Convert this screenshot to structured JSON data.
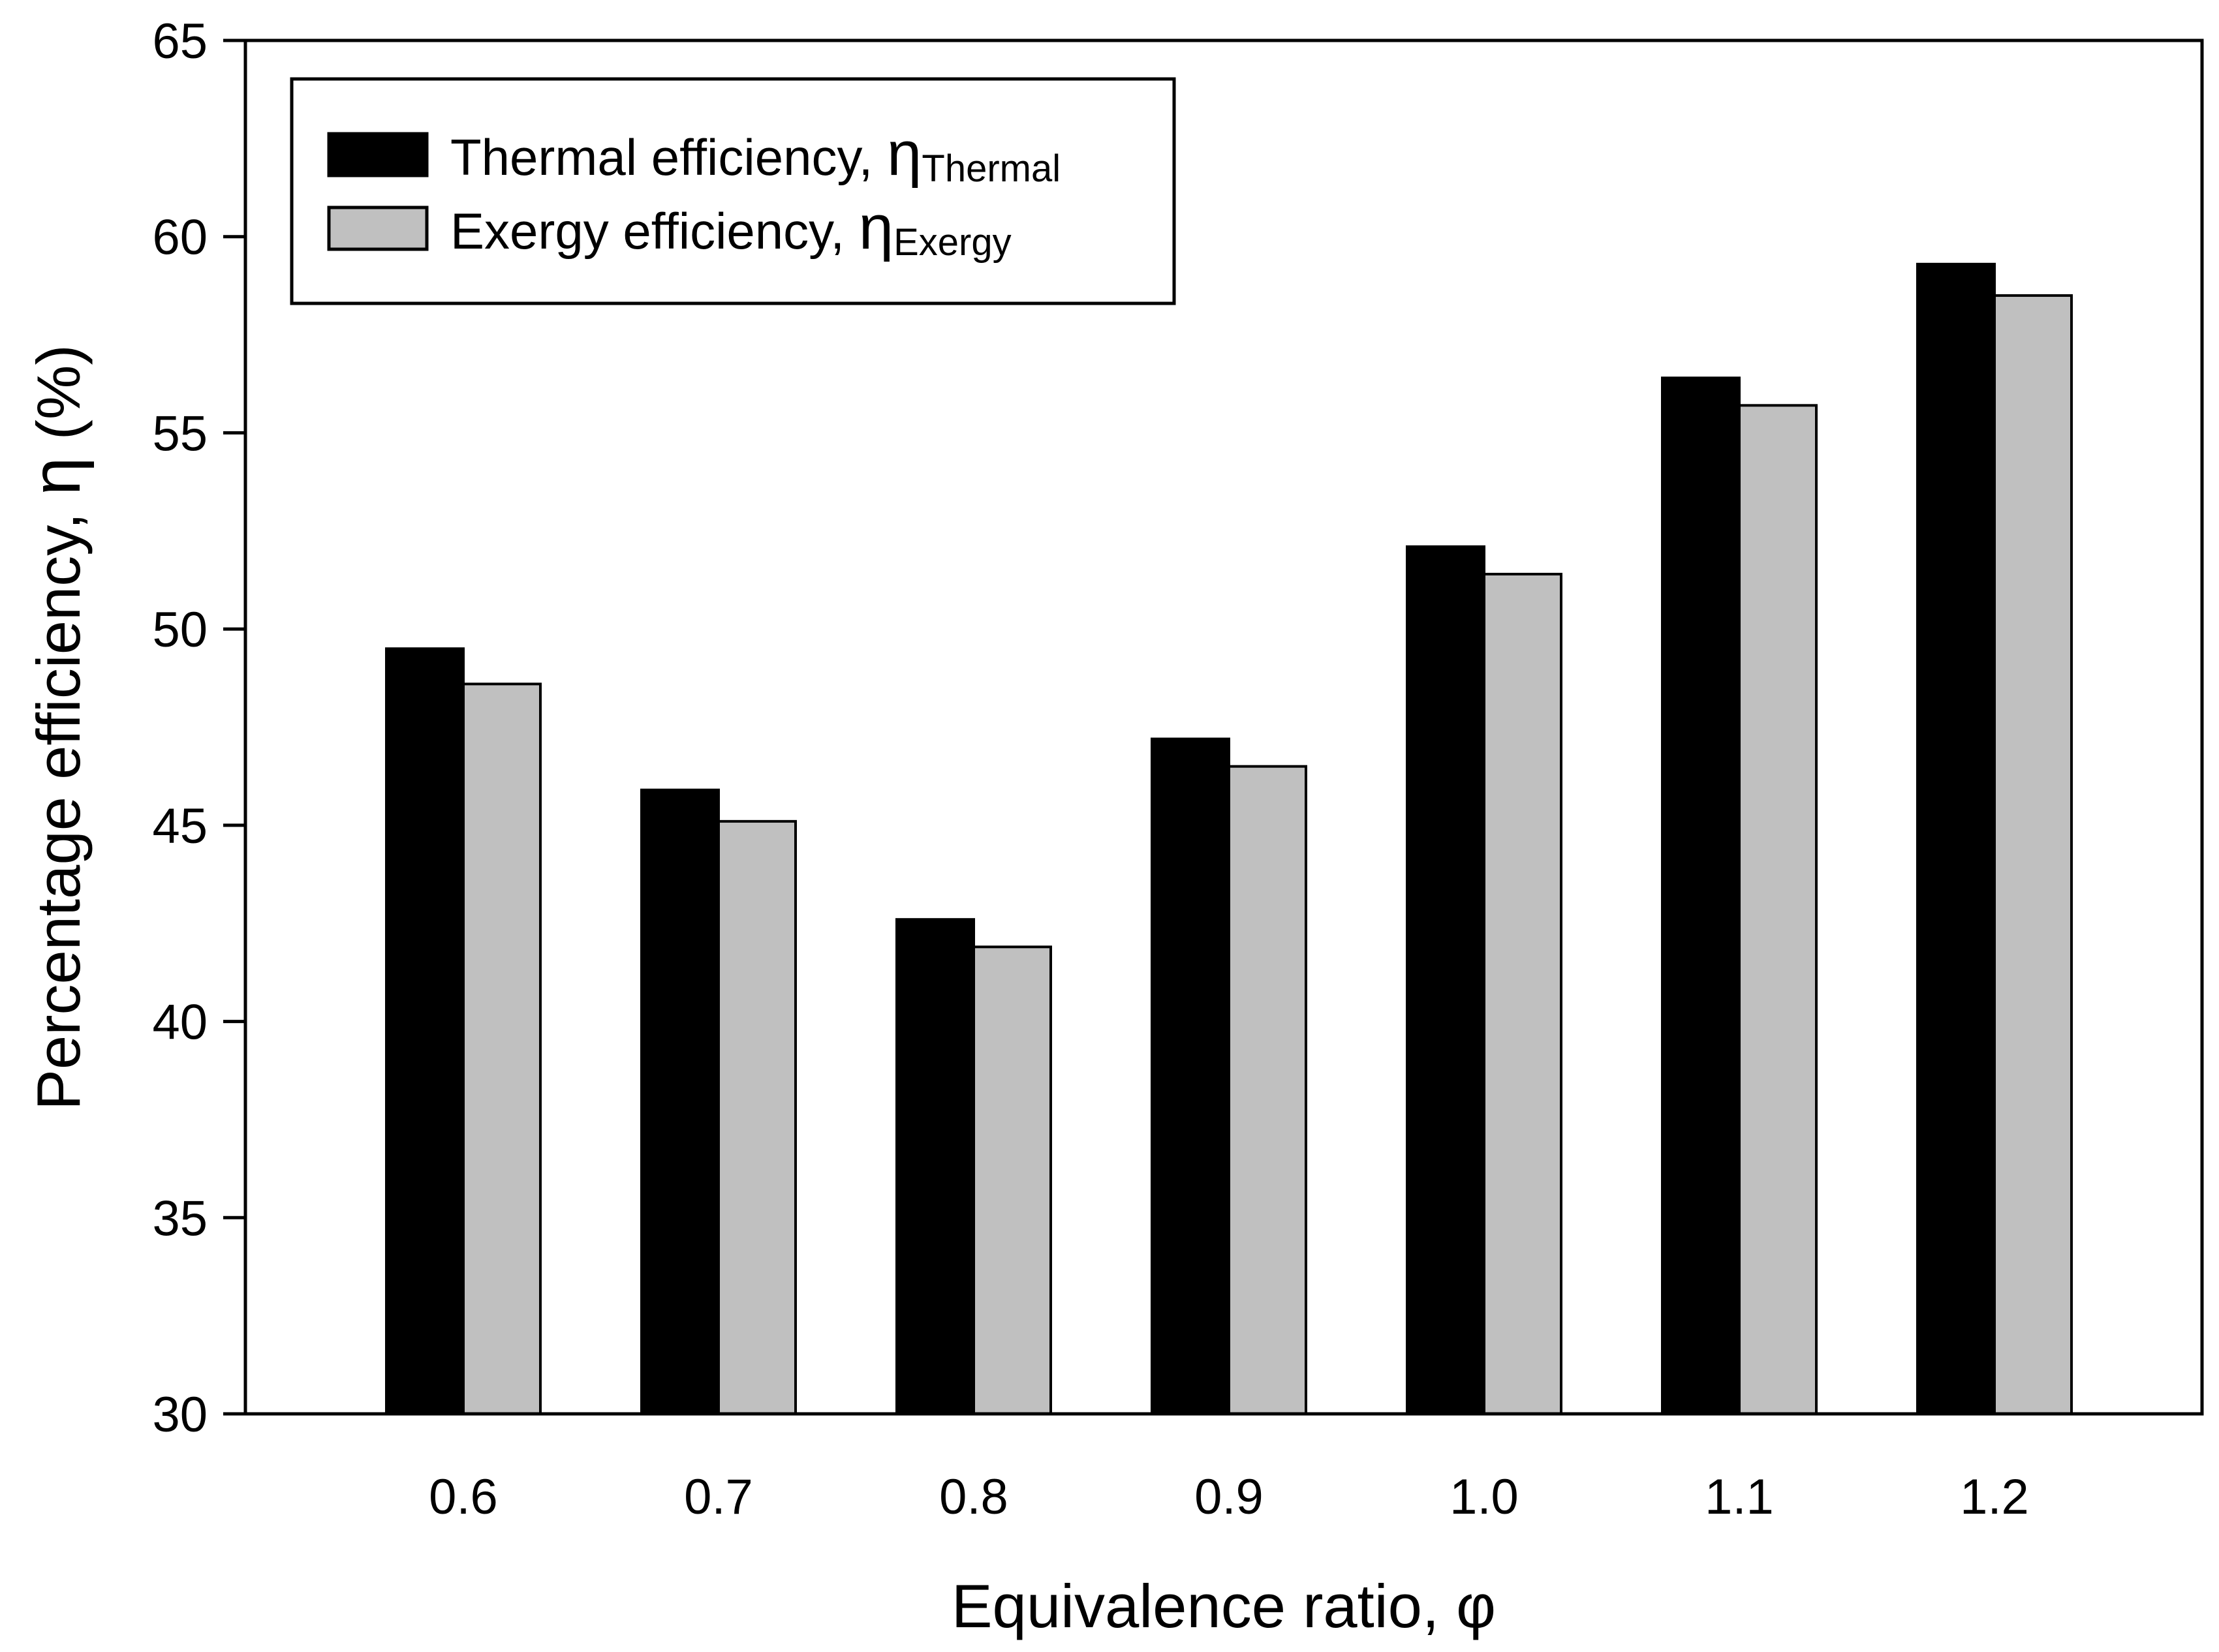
{
  "chart_data": {
    "type": "bar",
    "title": "",
    "xlabel": "Equivalence ratio, φ",
    "ylabel_text": "Percentage efficiency, ",
    "ylabel_symbol": "η",
    "ylabel_unit": " (%)",
    "categories": [
      "0.6",
      "0.7",
      "0.8",
      "0.9",
      "1.0",
      "1.1",
      "1.2"
    ],
    "series": [
      {
        "name": "Thermal efficiency, ",
        "symbol": "η",
        "subscript": "Thermal",
        "color": "#000000",
        "values": [
          49.5,
          45.9,
          42.6,
          47.2,
          52.1,
          56.4,
          59.3
        ]
      },
      {
        "name": "Exergy efficiency, ",
        "symbol": "η",
        "subscript": "Exergy",
        "color": "#c0c0c0",
        "values": [
          48.6,
          45.1,
          41.9,
          46.5,
          51.4,
          55.7,
          58.5
        ]
      }
    ],
    "ylim": [
      30,
      65
    ],
    "yticks": [
      "30",
      "35",
      "40",
      "45",
      "50",
      "55",
      "60",
      "65"
    ],
    "grid": false,
    "legend_position": "top-left"
  }
}
